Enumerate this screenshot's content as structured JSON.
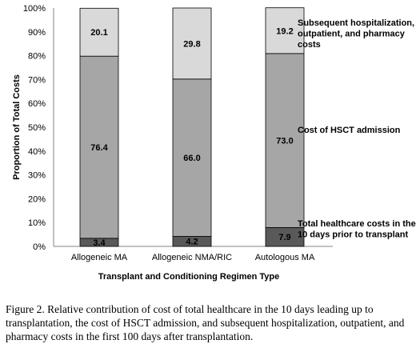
{
  "chart_data": {
    "type": "bar",
    "stacked": true,
    "xlabel": "Transplant and Conditioning Regimen Type",
    "ylabel": "Proportion of Total Costs",
    "ylim": [
      0,
      100
    ],
    "y_ticks": [
      "0%",
      "10%",
      "20%",
      "30%",
      "40%",
      "50%",
      "60%",
      "70%",
      "80%",
      "90%",
      "100%"
    ],
    "categories": [
      "Allogeneic MA",
      "Allogeneic NMA/RIC",
      "Autologous MA"
    ],
    "series": [
      {
        "name": "Total healthcare costs in the 10 days prior to transplant",
        "values": [
          3.4,
          4.2,
          7.9
        ],
        "labels": [
          "3.4",
          "4.2",
          "7.9"
        ],
        "color": "#595959"
      },
      {
        "name": "Cost of HSCT admission",
        "values": [
          76.4,
          66.0,
          73.0
        ],
        "labels": [
          "76.4",
          "66.0",
          "73.0"
        ],
        "color": "#a6a6a6"
      },
      {
        "name": "Subsequent hospitalization, outpatient, and pharmacy costs",
        "values": [
          20.1,
          29.8,
          19.2
        ],
        "labels": [
          "20.1",
          "29.8",
          "19.2"
        ],
        "color": "#d9d9d9"
      }
    ],
    "legend_lines": [
      [
        "Total healthcare costs in the",
        "10 days prior to transplant"
      ],
      [
        "Cost of HSCT admission"
      ],
      [
        "Subsequent hospitalization,",
        "outpatient, and pharmacy",
        "costs"
      ]
    ],
    "legend": "right, inline labels",
    "grid": false
  },
  "caption": "Figure 2. Relative contribution of cost of total healthcare in the 10 days leading up to transplantation, the cost of HSCT admission, and subsequent hospitalization, outpatient, and pharmacy costs in the first 100 days after transplantation."
}
